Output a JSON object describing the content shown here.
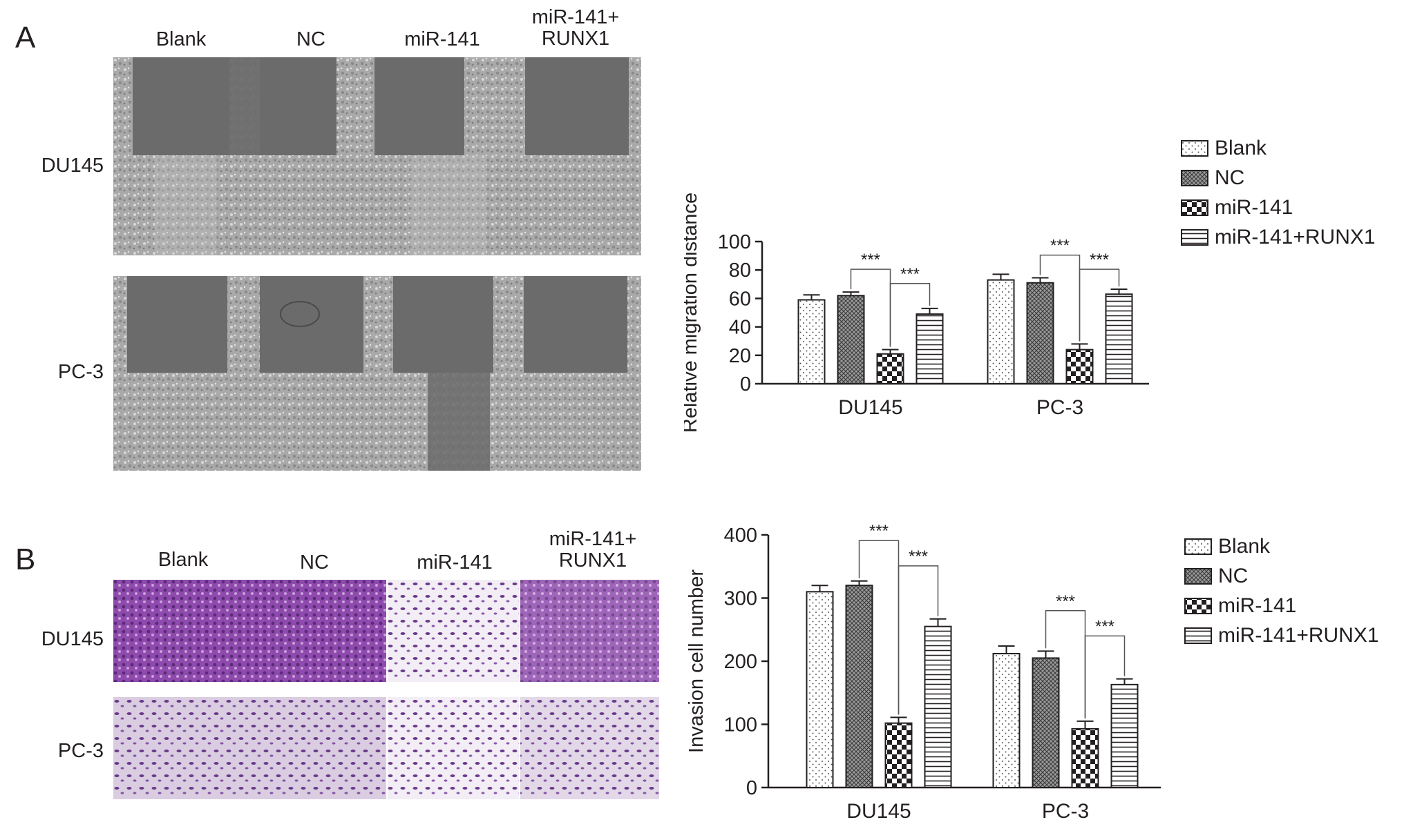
{
  "panels": [
    {
      "letter": "A",
      "columns": [
        "Blank",
        "NC",
        "miR-141",
        "miR-141+\nRUNX1"
      ],
      "rows": [
        "DU145",
        "PC-3"
      ]
    },
    {
      "letter": "B",
      "columns": [
        "Blank",
        "NC",
        "miR-141",
        "miR-141+\nRUNX1"
      ],
      "rows": [
        "DU145",
        "PC-3"
      ]
    }
  ],
  "colors": {
    "scratch_gap": "#6b6b6b",
    "cell_field": "#a9a9a9",
    "stain_dark": "#7a3c9a",
    "stain_light": "#f3eef5",
    "ink": "#231f20"
  },
  "chart_data": [
    {
      "type": "bar",
      "categories": [
        "DU145",
        "PC-3"
      ],
      "series": [
        {
          "name": "Blank",
          "pattern": "dots",
          "values": [
            59,
            73
          ],
          "errors": [
            3.5,
            4
          ]
        },
        {
          "name": "NC",
          "pattern": "crosshatch",
          "values": [
            62,
            71
          ],
          "errors": [
            2.5,
            3.5
          ]
        },
        {
          "name": "miR-141",
          "pattern": "checker",
          "values": [
            21,
            24
          ],
          "errors": [
            3,
            4
          ]
        },
        {
          "name": "miR-141+RUNX1",
          "pattern": "hlines",
          "values": [
            49,
            63
          ],
          "errors": [
            4,
            3.5
          ]
        }
      ],
      "ylabel": "Relative migration distance",
      "ylim": [
        0,
        100
      ],
      "yticks": [
        0,
        20,
        40,
        60,
        80,
        100
      ],
      "legend": "right",
      "significance": [
        {
          "category": 0,
          "from": 1,
          "to": 2,
          "label": "***"
        },
        {
          "category": 0,
          "from": 2,
          "to": 3,
          "label": "***"
        },
        {
          "category": 1,
          "from": 1,
          "to": 2,
          "label": "***"
        },
        {
          "category": 1,
          "from": 2,
          "to": 3,
          "label": "***"
        }
      ]
    },
    {
      "type": "bar",
      "categories": [
        "DU145",
        "PC-3"
      ],
      "series": [
        {
          "name": "Blank",
          "pattern": "dots",
          "values": [
            310,
            212
          ],
          "errors": [
            10,
            12
          ]
        },
        {
          "name": "NC",
          "pattern": "crosshatch",
          "values": [
            320,
            205
          ],
          "errors": [
            7,
            11
          ]
        },
        {
          "name": "miR-141",
          "pattern": "checker",
          "values": [
            102,
            93
          ],
          "errors": [
            9,
            12
          ]
        },
        {
          "name": "miR-141+RUNX1",
          "pattern": "hlines",
          "values": [
            255,
            163
          ],
          "errors": [
            12,
            9
          ]
        }
      ],
      "ylabel": "Invasion cell number",
      "ylim": [
        0,
        400
      ],
      "yticks": [
        0,
        100,
        200,
        300,
        400
      ],
      "legend": "right",
      "significance": [
        {
          "category": 0,
          "from": 1,
          "to": 2,
          "label": "***"
        },
        {
          "category": 0,
          "from": 2,
          "to": 3,
          "label": "***"
        },
        {
          "category": 1,
          "from": 1,
          "to": 2,
          "label": "***"
        },
        {
          "category": 1,
          "from": 2,
          "to": 3,
          "label": "***"
        }
      ]
    }
  ]
}
